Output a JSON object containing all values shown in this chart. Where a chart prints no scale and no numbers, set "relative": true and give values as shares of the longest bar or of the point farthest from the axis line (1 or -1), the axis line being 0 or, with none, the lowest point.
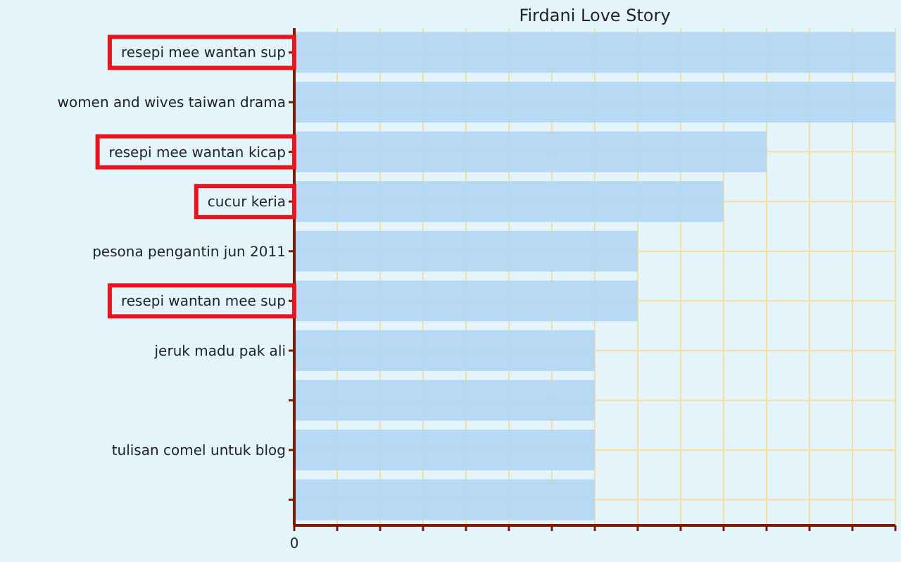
{
  "chart_data": {
    "type": "bar",
    "orientation": "horizontal",
    "relative": true,
    "title": "Firdani Love Story",
    "categories": [
      "resepi mee wantan sup",
      "women and wives taiwan drama",
      "resepi mee wantan kicap",
      "cucur keria",
      "pesona pengantin jun 2011",
      "resepi wantan mee sup",
      "jeruk madu pak ali",
      null,
      "tulisan comel untuk blog",
      null
    ],
    "values": [
      1,
      1,
      0.786,
      0.714,
      0.571,
      0.571,
      0.5,
      0.5,
      0.5,
      0.5
    ],
    "color": "#b5d7f2",
    "grid": true,
    "annotations": [
      "0"
    ]
  }
}
